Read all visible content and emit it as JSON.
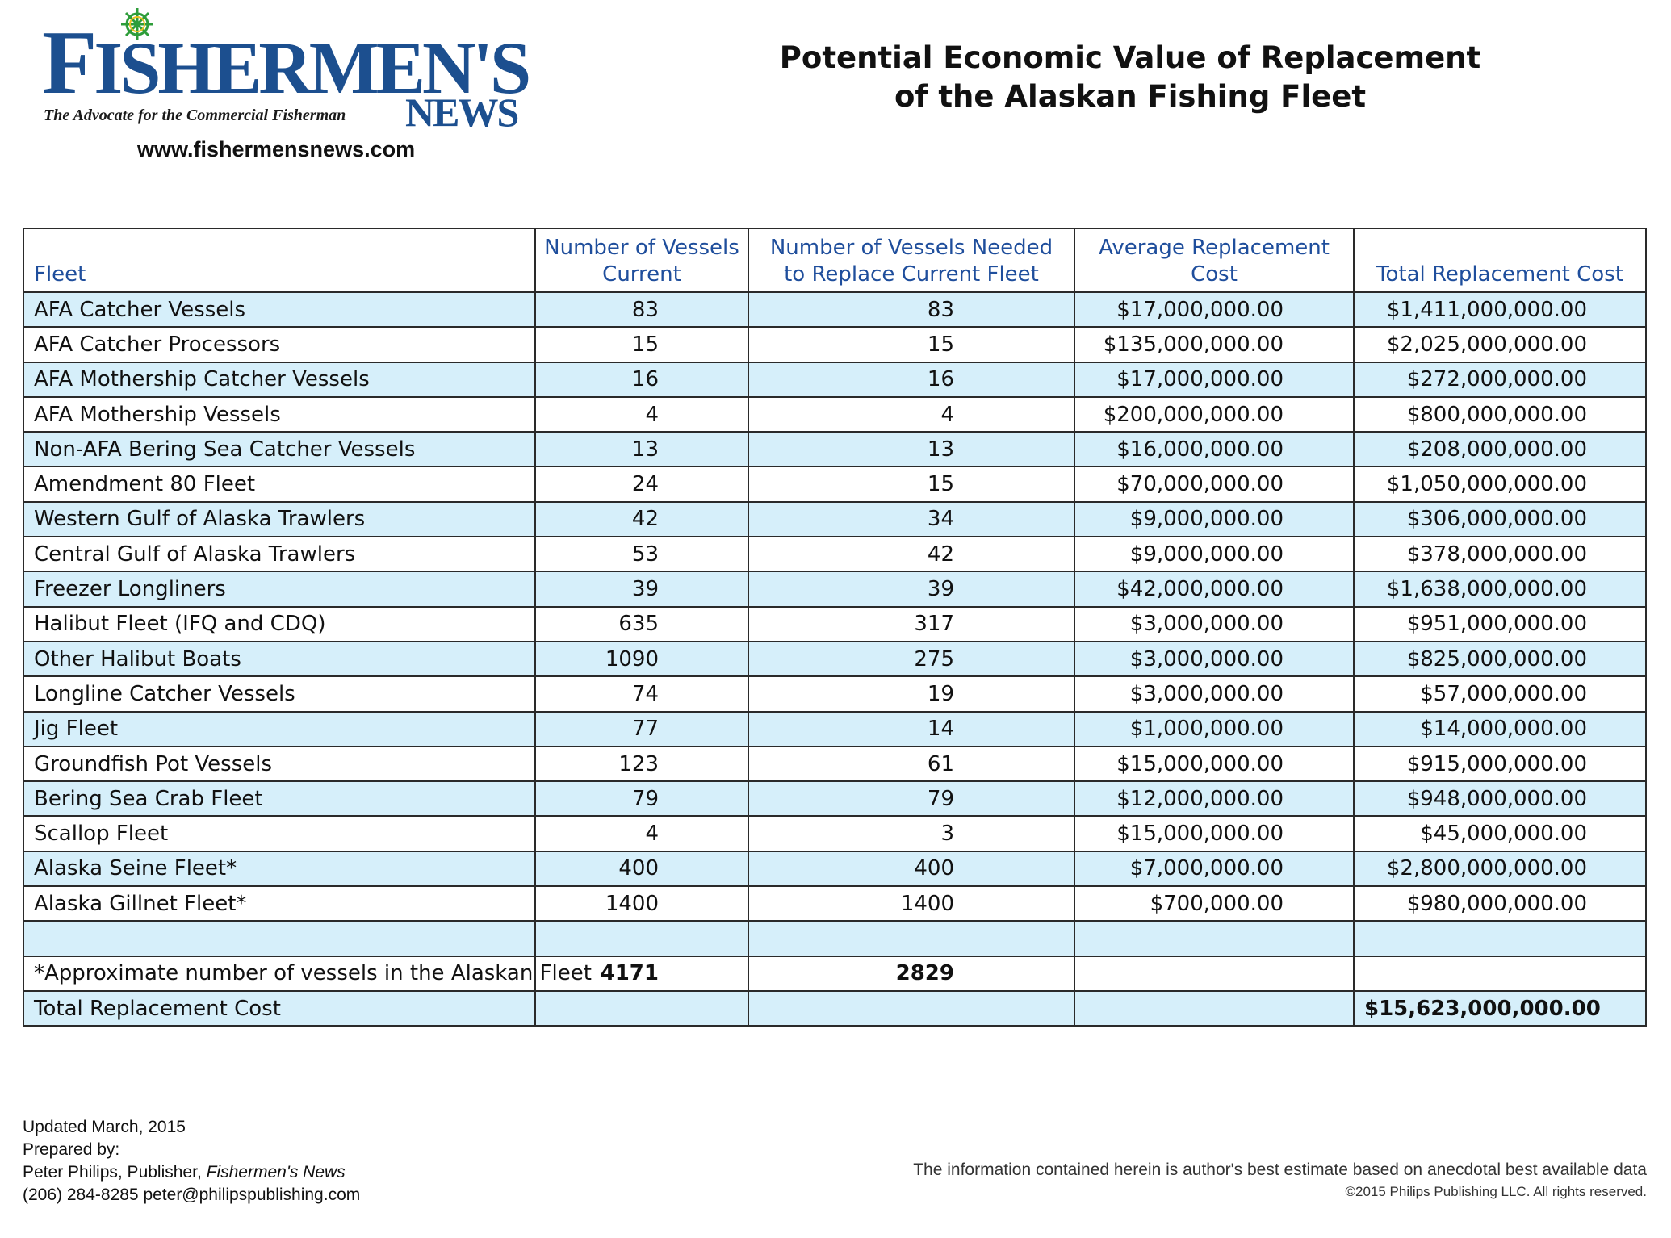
{
  "masthead": {
    "logo_first_letter": "F",
    "logo_rest": "ISHERMEN'S",
    "logo_news": "NEWS",
    "tagline": "The Advocate for the Commercial Fisherman",
    "website": "www.fishermensnews.com"
  },
  "title_line1": "Potential Economic Value of Replacement",
  "title_line2": "of the Alaskan Fishing Fleet",
  "table": {
    "headers": {
      "fleet": "Fleet",
      "current_line1": "Number of Vessels",
      "current_line2": "Current",
      "needed_line1": "Number of Vessels Needed",
      "needed_line2": "to Replace Current Fleet",
      "avg_line1": "Average Replacement",
      "avg_line2": "Cost",
      "total": "Total Replacement Cost"
    },
    "rows": [
      {
        "fleet": "AFA Catcher Vessels",
        "current": "83",
        "needed": "83",
        "avg": "$17,000,000.00",
        "total": "$1,411,000,000.00"
      },
      {
        "fleet": "AFA Catcher Processors",
        "current": "15",
        "needed": "15",
        "avg": "$135,000,000.00",
        "total": "$2,025,000,000.00"
      },
      {
        "fleet": "AFA Mothership Catcher Vessels",
        "current": "16",
        "needed": "16",
        "avg": "$17,000,000.00",
        "total": "$272,000,000.00"
      },
      {
        "fleet": "AFA Mothership Vessels",
        "current": "4",
        "needed": "4",
        "avg": "$200,000,000.00",
        "total": "$800,000,000.00"
      },
      {
        "fleet": "Non-AFA Bering Sea Catcher Vessels",
        "current": "13",
        "needed": "13",
        "avg": "$16,000,000.00",
        "total": "$208,000,000.00"
      },
      {
        "fleet": "Amendment 80 Fleet",
        "current": "24",
        "needed": "15",
        "avg": "$70,000,000.00",
        "total": "$1,050,000,000.00"
      },
      {
        "fleet": "Western Gulf of Alaska Trawlers",
        "current": "42",
        "needed": "34",
        "avg": "$9,000,000.00",
        "total": "$306,000,000.00"
      },
      {
        "fleet": "Central Gulf of Alaska Trawlers",
        "current": "53",
        "needed": "42",
        "avg": "$9,000,000.00",
        "total": "$378,000,000.00"
      },
      {
        "fleet": "Freezer Longliners",
        "current": "39",
        "needed": "39",
        "avg": "$42,000,000.00",
        "total": "$1,638,000,000.00"
      },
      {
        "fleet": "Halibut Fleet (IFQ and CDQ)",
        "current": "635",
        "needed": "317",
        "avg": "$3,000,000.00",
        "total": "$951,000,000.00"
      },
      {
        "fleet": "Other Halibut Boats",
        "current": "1090",
        "needed": "275",
        "avg": "$3,000,000.00",
        "total": "$825,000,000.00"
      },
      {
        "fleet": "Longline Catcher Vessels",
        "current": "74",
        "needed": "19",
        "avg": "$3,000,000.00",
        "total": "$57,000,000.00"
      },
      {
        "fleet": "Jig Fleet",
        "current": "77",
        "needed": "14",
        "avg": "$1,000,000.00",
        "total": "$14,000,000.00"
      },
      {
        "fleet": "Groundfish Pot Vessels",
        "current": "123",
        "needed": "61",
        "avg": "$15,000,000.00",
        "total": "$915,000,000.00"
      },
      {
        "fleet": "Bering Sea Crab Fleet",
        "current": "79",
        "needed": "79",
        "avg": "$12,000,000.00",
        "total": "$948,000,000.00"
      },
      {
        "fleet": "Scallop Fleet",
        "current": "4",
        "needed": "3",
        "avg": "$15,000,000.00",
        "total": "$45,000,000.00"
      },
      {
        "fleet": "Alaska Seine Fleet*",
        "current": "400",
        "needed": "400",
        "avg": "$7,000,000.00",
        "total": "$2,800,000,000.00"
      },
      {
        "fleet": "Alaska Gillnet Fleet*",
        "current": "1400",
        "needed": "1400",
        "avg": "$700,000.00",
        "total": "$980,000,000.00"
      }
    ],
    "approx_label": "*Approximate number of vessels in the Alaskan Fleet",
    "approx_current": "4171",
    "approx_needed": "2829",
    "total_label": "Total Replacement Cost",
    "grand_total": "$15,623,000,000.00"
  },
  "footer": {
    "updated": "Updated March, 2015",
    "prepared": "Prepared by:",
    "publisher_prefix": "Peter Philips, Publisher, ",
    "publisher_pub": "Fishermen's News",
    "contact": "(206) 284-8285  peter@philipspublishing.com",
    "disclaimer": "The information contained herein is author's best estimate based on anecdotal best available data",
    "copyright": "©2015 Philips Publishing LLC. All rights reserved."
  },
  "colors": {
    "brand_blue": "#1c4f8f",
    "header_blue": "#1f4e9c",
    "row_stripe": "#d6effa"
  }
}
